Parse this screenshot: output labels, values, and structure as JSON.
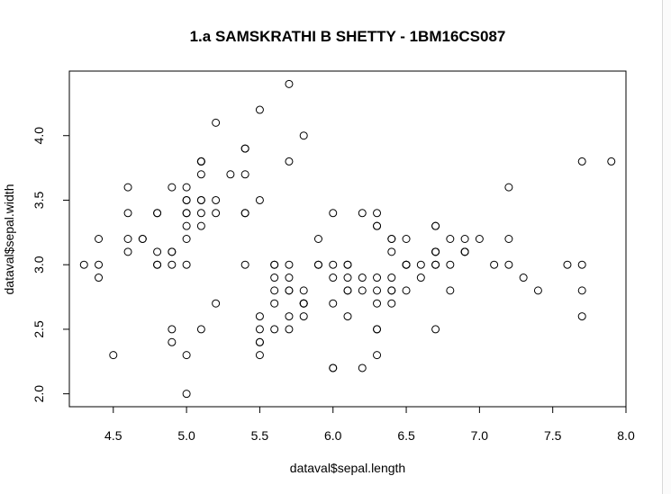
{
  "chart_data": {
    "type": "scatter",
    "title": "1.a SAMSKRATHI B SHETTY - 1BM16CS087",
    "xlabel": "dataval$sepal.length",
    "ylabel": "dataval$sepal.width",
    "xlim": [
      4.2,
      8.0
    ],
    "ylim": [
      1.9,
      4.5
    ],
    "xticks": [
      "4.5",
      "5.0",
      "5.5",
      "6.0",
      "6.5",
      "7.0",
      "7.5",
      "8.0"
    ],
    "yticks": [
      "2.0",
      "2.5",
      "3.0",
      "3.5",
      "4.0"
    ],
    "grid": false,
    "marker": "open-circle",
    "x": [
      5.1,
      4.9,
      4.7,
      4.6,
      5.0,
      5.4,
      4.6,
      5.0,
      4.4,
      4.9,
      5.4,
      4.8,
      4.8,
      4.3,
      5.8,
      5.7,
      5.4,
      5.1,
      5.7,
      5.1,
      5.4,
      5.1,
      4.6,
      5.1,
      4.8,
      5.0,
      5.0,
      5.2,
      5.2,
      4.7,
      4.8,
      5.4,
      5.2,
      5.5,
      4.9,
      5.0,
      5.5,
      4.9,
      4.4,
      5.1,
      5.0,
      4.5,
      4.4,
      5.0,
      5.1,
      4.8,
      5.1,
      4.6,
      5.3,
      5.0,
      7.0,
      6.4,
      6.9,
      5.5,
      6.5,
      5.7,
      6.3,
      4.9,
      6.6,
      5.2,
      5.0,
      5.9,
      6.0,
      6.1,
      5.6,
      6.7,
      5.6,
      5.8,
      6.2,
      5.6,
      5.9,
      6.1,
      6.3,
      6.1,
      6.4,
      6.6,
      6.8,
      6.7,
      6.0,
      5.7,
      5.5,
      5.5,
      5.8,
      6.0,
      5.4,
      6.0,
      6.7,
      6.3,
      5.6,
      5.5,
      5.5,
      6.1,
      5.8,
      5.0,
      5.6,
      5.7,
      5.7,
      6.2,
      5.1,
      5.7,
      6.3,
      5.8,
      7.1,
      6.3,
      6.5,
      7.6,
      4.9,
      7.3,
      6.7,
      7.2,
      6.5,
      6.4,
      6.8,
      5.7,
      5.8,
      6.4,
      6.5,
      7.7,
      7.7,
      6.0,
      6.9,
      5.6,
      7.7,
      6.3,
      6.7,
      7.2,
      6.2,
      6.1,
      6.4,
      7.2,
      7.4,
      7.9,
      6.4,
      6.3,
      6.1,
      7.7,
      6.3,
      6.4,
      6.0,
      6.9,
      6.7,
      6.9,
      5.8,
      6.8,
      6.7,
      6.7,
      6.3,
      6.5,
      6.2,
      5.9
    ],
    "y": [
      3.5,
      3.0,
      3.2,
      3.1,
      3.6,
      3.9,
      3.4,
      3.4,
      2.9,
      3.1,
      3.7,
      3.4,
      3.0,
      3.0,
      4.0,
      4.4,
      3.9,
      3.5,
      3.8,
      3.8,
      3.4,
      3.7,
      3.6,
      3.3,
      3.4,
      3.0,
      3.4,
      3.5,
      3.4,
      3.2,
      3.1,
      3.4,
      4.1,
      4.2,
      3.1,
      3.2,
      3.5,
      3.6,
      3.0,
      3.4,
      3.5,
      2.3,
      3.2,
      3.5,
      3.8,
      3.0,
      3.8,
      3.2,
      3.7,
      3.3,
      3.2,
      3.2,
      3.1,
      2.3,
      2.8,
      2.8,
      3.3,
      2.4,
      2.9,
      2.7,
      2.0,
      3.0,
      2.2,
      2.9,
      2.9,
      3.1,
      3.0,
      2.7,
      2.2,
      2.5,
      3.2,
      2.8,
      2.5,
      2.8,
      2.9,
      3.0,
      2.8,
      3.0,
      2.9,
      2.6,
      2.4,
      2.4,
      2.7,
      2.7,
      3.0,
      3.4,
      3.1,
      2.3,
      3.0,
      2.5,
      2.6,
      3.0,
      2.6,
      2.3,
      2.7,
      3.0,
      2.9,
      2.9,
      2.5,
      2.8,
      3.3,
      2.7,
      3.0,
      2.9,
      3.0,
      3.0,
      2.5,
      2.9,
      2.5,
      3.6,
      3.2,
      2.7,
      3.0,
      2.5,
      2.8,
      3.2,
      3.0,
      3.8,
      2.6,
      2.2,
      3.2,
      2.8,
      2.8,
      2.7,
      3.3,
      3.2,
      2.8,
      3.0,
      2.8,
      3.0,
      2.8,
      3.8,
      2.8,
      2.8,
      2.6,
      3.0,
      3.4,
      3.1,
      3.0,
      3.1,
      3.1,
      3.1,
      2.7,
      3.2,
      3.3,
      3.0,
      2.5,
      3.0,
      3.4,
      3.0
    ]
  }
}
